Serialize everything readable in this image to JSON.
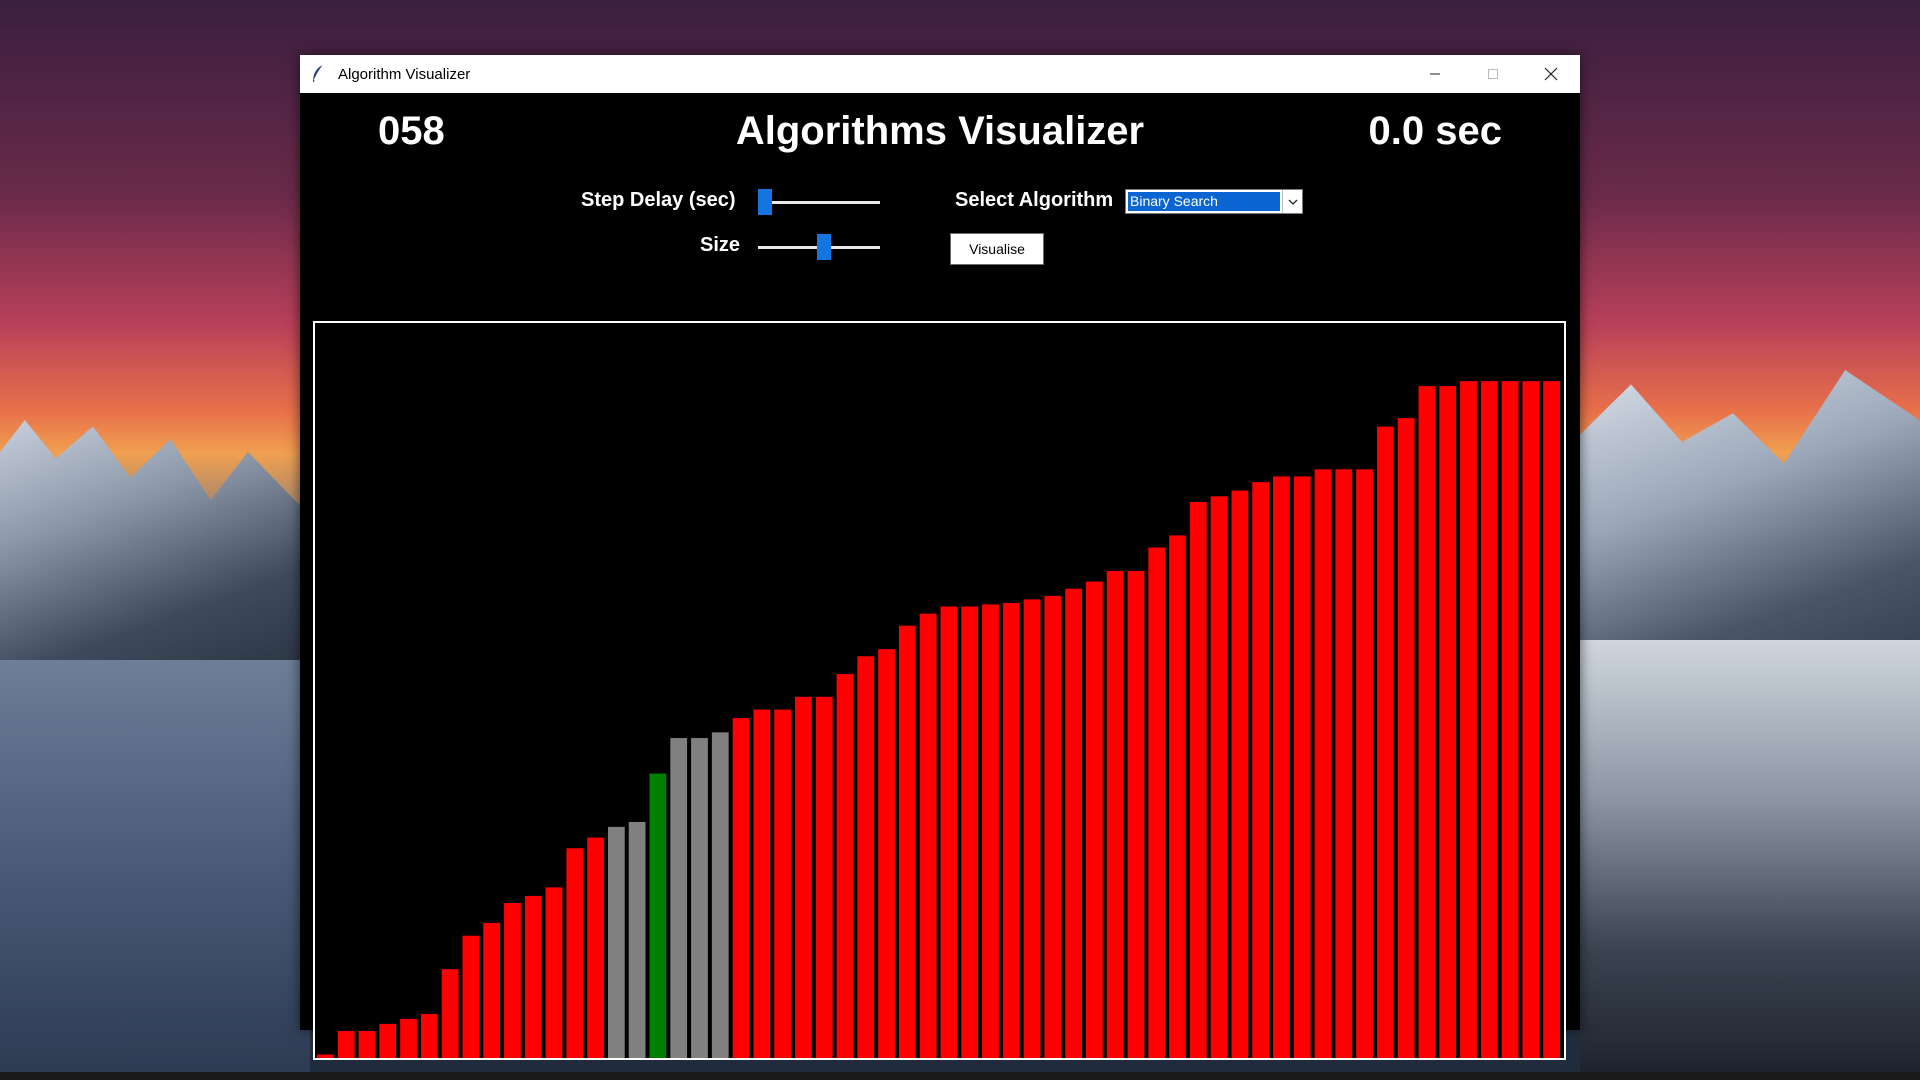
{
  "window": {
    "title": "Algorithm Visualizer"
  },
  "header": {
    "counter": "058",
    "title": "Algorithms Visualizer",
    "timer": "0.0 sec"
  },
  "controls": {
    "step_delay_label": "Step Delay (sec)",
    "step_delay_value": 0.0,
    "size_label": "Size",
    "size_value": 0.55,
    "select_label": "Select Algorithm",
    "algorithm": "Binary Search",
    "visualise_label": "Visualise"
  },
  "colors": {
    "default": "#ff0000",
    "checking": "#808080",
    "found": "#008000",
    "accent": "#1474e0"
  },
  "chart_data": {
    "type": "bar",
    "values": [
      5,
      38,
      38,
      48,
      55,
      62,
      125,
      172,
      190,
      218,
      228,
      240,
      295,
      310,
      325,
      332,
      400,
      450,
      450,
      458,
      478,
      490,
      490,
      508,
      508,
      540,
      565,
      575,
      608,
      625,
      635,
      635,
      638,
      640,
      645,
      650,
      660,
      670,
      685,
      685,
      718,
      735,
      782,
      790,
      798,
      810,
      818,
      818,
      828,
      828,
      828,
      888,
      900,
      945,
      945,
      952,
      952,
      952,
      952,
      952
    ],
    "states": [
      "default",
      "default",
      "default",
      "default",
      "default",
      "default",
      "default",
      "default",
      "default",
      "default",
      "default",
      "default",
      "default",
      "default",
      "checking",
      "checking",
      "found",
      "checking",
      "checking",
      "checking",
      "default",
      "default",
      "default",
      "default",
      "default",
      "default",
      "default",
      "default",
      "default",
      "default",
      "default",
      "default",
      "default",
      "default",
      "default",
      "default",
      "default",
      "default",
      "default",
      "default",
      "default",
      "default",
      "default",
      "default",
      "default",
      "default",
      "default",
      "default",
      "default",
      "default",
      "default",
      "default",
      "default",
      "default",
      "default",
      "default",
      "default",
      "default",
      "default",
      "default"
    ],
    "ylim": [
      0,
      1000
    ]
  }
}
